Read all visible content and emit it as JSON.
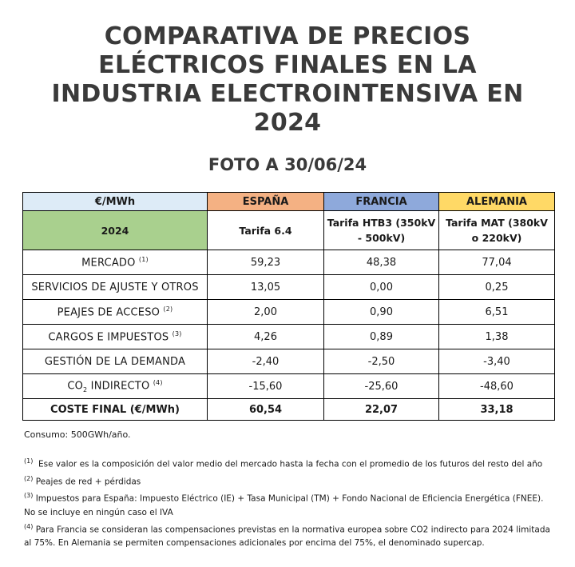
{
  "title_lines": [
    "COMPARATIVA DE PRECIOS",
    "ELÉCTRICOS FINALES EN LA",
    "INDUSTRIA ELECTROINTENSIVA EN",
    "2024"
  ],
  "subtitle": "FOTO A 30/06/24",
  "table": {
    "header": {
      "unit": "€/MWh",
      "es": "ESPAÑA",
      "fr": "FRANCIA",
      "de": "ALEMANIA"
    },
    "subheader": {
      "year": "2024",
      "es": "Tarifa 6.4",
      "fr": "Tarifa HTB3 (350kV - 500kV)",
      "de": "Tarifa MAT (380kV o 220kV)"
    },
    "rows": [
      {
        "label": "MERCADO",
        "sup": "(1)",
        "es": "59,23",
        "fr": "48,38",
        "de": "77,04"
      },
      {
        "label": "SERVICIOS DE AJUSTE Y OTROS",
        "sup": "",
        "es": "13,05",
        "fr": "0,00",
        "de": "0,25"
      },
      {
        "label": "PEAJES DE ACCESO",
        "sup": "(2)",
        "es": "2,00",
        "fr": "0,90",
        "de": "6,51"
      },
      {
        "label": "CARGOS E IMPUESTOS",
        "sup": "(3)",
        "es": "4,26",
        "fr": "0,89",
        "de": "1,38"
      },
      {
        "label": "GESTIÓN DE LA DEMANDA",
        "sup": "",
        "es": "-2,40",
        "fr": "-2,50",
        "de": "-3,40"
      },
      {
        "label_pre": "CO",
        "label_sub": "2",
        "label_post": " INDIRECTO",
        "sup": "(4)",
        "es": "-15,60",
        "fr": "-25,60",
        "de": "-48,60"
      }
    ],
    "total": {
      "label": "COSTE FINAL (€/MWh)",
      "es": "60,54",
      "fr": "22,07",
      "de": "33,18"
    }
  },
  "consumo": "Consumo: 500GWh/año.",
  "notes": [
    {
      "mark": "(1)",
      "text": "Ese valor es la composición del valor medio del mercado hasta la fecha con el promedio de los futuros del resto del año"
    },
    {
      "mark": "(2)",
      "text": "Peajes de red + pérdidas"
    },
    {
      "mark": "(3)",
      "text": "Impuestos para España: Impuesto Eléctrico (IE) + Tasa Municipal (TM) + Fondo Nacional de Eficiencia Energética (FNEE). No se incluye en ningún caso el IVA"
    },
    {
      "mark": "(4)",
      "text": "Para Francia se consideran las compensaciones previstas en la normativa europea sobre CO2 indirecto para 2024 limitada al 75%. En Alemania se permiten compensaciones adicionales por encima del 75%, el denominado supercap."
    }
  ]
}
